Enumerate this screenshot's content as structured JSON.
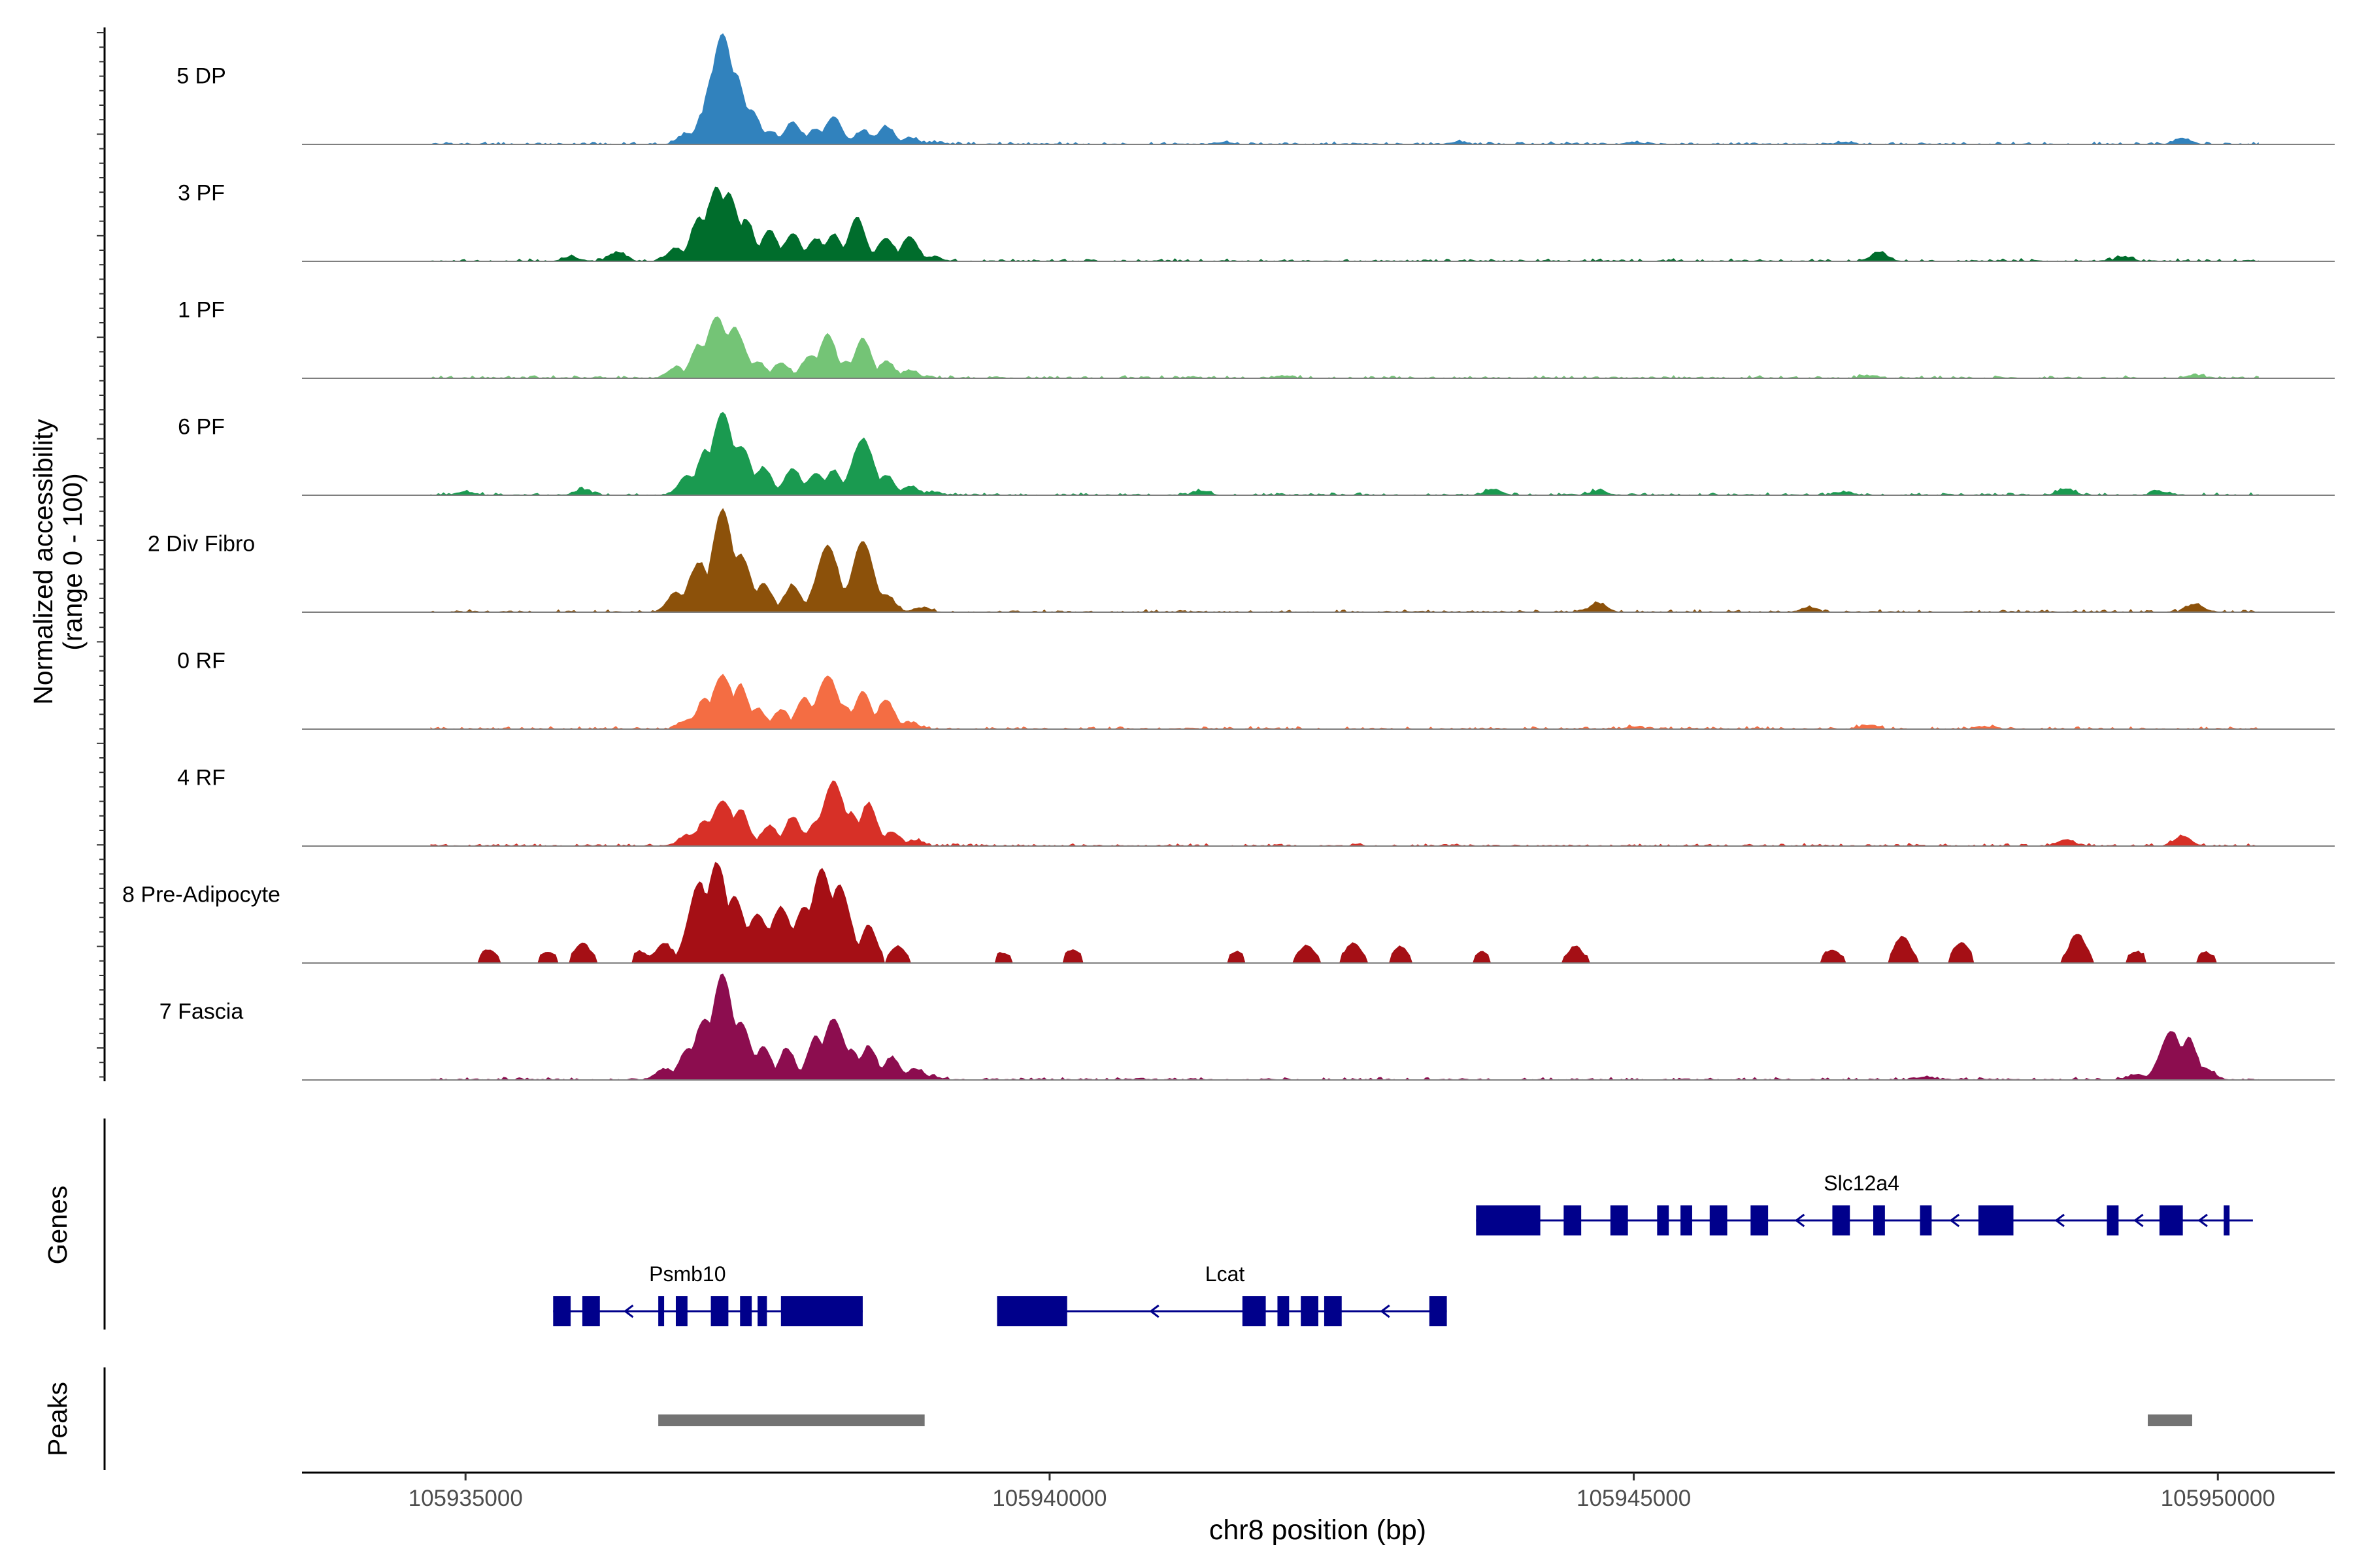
{
  "chart_data": {
    "type": "area",
    "title": "",
    "xlabel": "chr8 position (bp)",
    "ylabel_line1": "Normalized accessibility",
    "ylabel_line2": "(range 0 - 100)",
    "xlim": [
      105933600,
      105951000
    ],
    "x_ticks": [
      {
        "value": 105935000,
        "label": "105935000"
      },
      {
        "value": 105940000,
        "label": "105940000"
      },
      {
        "value": 105945000,
        "label": "105945000"
      },
      {
        "value": 105950000,
        "label": "105950000"
      }
    ],
    "panel_labels": {
      "genes": "Genes",
      "peaks": "Peaks"
    },
    "series": [
      {
        "name": "5 DP",
        "color": "#3182bd",
        "peaks": [
          [
            105936900,
            10
          ],
          [
            105937050,
            30
          ],
          [
            105937150,
            72
          ],
          [
            105937200,
            100
          ],
          [
            105937300,
            65
          ],
          [
            105937450,
            30
          ],
          [
            105937600,
            12
          ],
          [
            105937800,
            20
          ],
          [
            105938000,
            14
          ],
          [
            105938150,
            25
          ],
          [
            105938400,
            12
          ],
          [
            105938600,
            16
          ],
          [
            105938800,
            6
          ],
          [
            105939000,
            2
          ],
          [
            105941500,
            2
          ],
          [
            105943500,
            2
          ],
          [
            105945000,
            2
          ],
          [
            105946800,
            2
          ],
          [
            105949700,
            5
          ]
        ]
      },
      {
        "name": "3 PF",
        "color": "#006d2c",
        "peaks": [
          [
            105935900,
            4
          ],
          [
            105936300,
            8
          ],
          [
            105936800,
            12
          ],
          [
            105937000,
            40
          ],
          [
            105937150,
            66
          ],
          [
            105937250,
            60
          ],
          [
            105937400,
            38
          ],
          [
            105937600,
            28
          ],
          [
            105937800,
            25
          ],
          [
            105938000,
            20
          ],
          [
            105938150,
            24
          ],
          [
            105938350,
            40
          ],
          [
            105938600,
            21
          ],
          [
            105938800,
            22
          ],
          [
            105939000,
            4
          ],
          [
            105947100,
            8
          ],
          [
            105949200,
            4
          ]
        ]
      },
      {
        "name": "1 PF",
        "color": "#74c476",
        "peaks": [
          [
            105936800,
            10
          ],
          [
            105937000,
            30
          ],
          [
            105937150,
            55
          ],
          [
            105937300,
            45
          ],
          [
            105937500,
            15
          ],
          [
            105937700,
            14
          ],
          [
            105937950,
            20
          ],
          [
            105938100,
            40
          ],
          [
            105938250,
            15
          ],
          [
            105938400,
            36
          ],
          [
            105938600,
            15
          ],
          [
            105938800,
            7
          ],
          [
            105942000,
            2
          ],
          [
            105947000,
            2
          ],
          [
            105949800,
            3
          ]
        ]
      },
      {
        "name": "6 PF",
        "color": "#1a9a50",
        "peaks": [
          [
            105935000,
            3
          ],
          [
            105936000,
            5
          ],
          [
            105936900,
            18
          ],
          [
            105937050,
            40
          ],
          [
            105937200,
            75
          ],
          [
            105937350,
            44
          ],
          [
            105937550,
            25
          ],
          [
            105937800,
            24
          ],
          [
            105938000,
            20
          ],
          [
            105938150,
            22
          ],
          [
            105938400,
            50
          ],
          [
            105938600,
            18
          ],
          [
            105938800,
            8
          ],
          [
            105939000,
            3
          ],
          [
            105941300,
            4
          ],
          [
            105943800,
            5
          ],
          [
            105944700,
            4
          ],
          [
            105946800,
            3
          ],
          [
            105948700,
            6
          ],
          [
            105949500,
            3
          ]
        ]
      },
      {
        "name": "2 Div Fibro",
        "color": "#8c510a",
        "peaks": [
          [
            105936800,
            18
          ],
          [
            105937000,
            44
          ],
          [
            105937200,
            92
          ],
          [
            105937350,
            52
          ],
          [
            105937550,
            26
          ],
          [
            105937800,
            24
          ],
          [
            105938100,
            60
          ],
          [
            105938250,
            22
          ],
          [
            105938400,
            64
          ],
          [
            105938600,
            16
          ],
          [
            105938900,
            4
          ],
          [
            105944700,
            8
          ],
          [
            105946500,
            4
          ],
          [
            105949800,
            7
          ]
        ]
      },
      {
        "name": "0 RF",
        "color": "#f46d43",
        "peaks": [
          [
            105936900,
            8
          ],
          [
            105937050,
            28
          ],
          [
            105937200,
            48
          ],
          [
            105937350,
            40
          ],
          [
            105937500,
            18
          ],
          [
            105937700,
            17
          ],
          [
            105937900,
            28
          ],
          [
            105938100,
            48
          ],
          [
            105938250,
            20
          ],
          [
            105938400,
            34
          ],
          [
            105938600,
            26
          ],
          [
            105938800,
            6
          ],
          [
            105945000,
            2
          ],
          [
            105947000,
            3
          ],
          [
            105948000,
            2
          ]
        ]
      },
      {
        "name": "4 RF",
        "color": "#d73027",
        "peaks": [
          [
            105936900,
            10
          ],
          [
            105937050,
            22
          ],
          [
            105937200,
            41
          ],
          [
            105937350,
            33
          ],
          [
            105937600,
            18
          ],
          [
            105937800,
            26
          ],
          [
            105938000,
            22
          ],
          [
            105938150,
            58
          ],
          [
            105938300,
            30
          ],
          [
            105938450,
            38
          ],
          [
            105938650,
            13
          ],
          [
            105938850,
            5
          ],
          [
            105948700,
            6
          ],
          [
            105949700,
            9
          ]
        ]
      },
      {
        "name": "8 Pre-Adipocyte",
        "color": "#a50f15",
        "peaks": [
          [
            105935200,
            12
          ],
          [
            105935700,
            10
          ],
          [
            105936000,
            18
          ],
          [
            105936500,
            10
          ],
          [
            105936700,
            18
          ],
          [
            105937000,
            72
          ],
          [
            105937150,
            90
          ],
          [
            105937300,
            60
          ],
          [
            105937500,
            44
          ],
          [
            105937700,
            50
          ],
          [
            105937900,
            50
          ],
          [
            105938050,
            85
          ],
          [
            105938200,
            70
          ],
          [
            105938450,
            34
          ],
          [
            105938700,
            15
          ],
          [
            105939600,
            9
          ],
          [
            105940200,
            12
          ],
          [
            105941600,
            10
          ],
          [
            105942200,
            16
          ],
          [
            105942600,
            18
          ],
          [
            105943000,
            14
          ],
          [
            105943700,
            9
          ],
          [
            105944500,
            14
          ],
          [
            105946700,
            12
          ],
          [
            105947300,
            24
          ],
          [
            105947800,
            18
          ],
          [
            105948800,
            26
          ],
          [
            105949300,
            10
          ],
          [
            105949900,
            9
          ]
        ]
      },
      {
        "name": "7 Fascia",
        "color": "#8c0d4f",
        "peaks": [
          [
            105936700,
            10
          ],
          [
            105936900,
            28
          ],
          [
            105937050,
            55
          ],
          [
            105937200,
            95
          ],
          [
            105937350,
            52
          ],
          [
            105937550,
            30
          ],
          [
            105937750,
            28
          ],
          [
            105938000,
            40
          ],
          [
            105938150,
            55
          ],
          [
            105938300,
            28
          ],
          [
            105938450,
            30
          ],
          [
            105938650,
            20
          ],
          [
            105938850,
            10
          ],
          [
            105939000,
            3
          ],
          [
            105947500,
            3
          ],
          [
            105949300,
            5
          ],
          [
            105949600,
            44
          ],
          [
            105949750,
            38
          ],
          [
            105949900,
            10
          ]
        ]
      }
    ],
    "genes": [
      {
        "name": "Slc12a4",
        "strand": "-",
        "row": 1,
        "start": 105943650,
        "end": 105950300,
        "label_x": 105946950,
        "exons": [
          [
            105943650,
            105944200
          ],
          [
            105944400,
            105944550
          ],
          [
            105944800,
            105944950
          ],
          [
            105945200,
            105945300
          ],
          [
            105945400,
            105945500
          ],
          [
            105945650,
            105945800
          ],
          [
            105946000,
            105946150
          ],
          [
            105946700,
            105946850
          ],
          [
            105947050,
            105947150
          ],
          [
            105947450,
            105947550
          ],
          [
            105947950,
            105948250
          ],
          [
            105949050,
            105949150
          ],
          [
            105949500,
            105949700
          ],
          [
            105950050,
            105950100
          ]
        ]
      },
      {
        "name": "Psmb10",
        "strand": "-",
        "row": 2,
        "start": 105935750,
        "end": 105938400,
        "label_x": 105936900,
        "exons": [
          [
            105935750,
            105935900
          ],
          [
            105936000,
            105936150
          ],
          [
            105936650,
            105936700
          ],
          [
            105936800,
            105936900
          ],
          [
            105937100,
            105937250
          ],
          [
            105937350,
            105937450
          ],
          [
            105937500,
            105937580
          ],
          [
            105937700,
            105938400
          ]
        ]
      },
      {
        "name": "Lcat",
        "strand": "-",
        "row": 2,
        "start": 105939550,
        "end": 105943400,
        "label_x": 105941500,
        "exons": [
          [
            105939550,
            105940150
          ],
          [
            105941650,
            105941850
          ],
          [
            105941950,
            105942050
          ],
          [
            105942150,
            105942300
          ],
          [
            105942350,
            105942500
          ],
          [
            105943250,
            105943400
          ]
        ]
      }
    ],
    "peak_regions": [
      [
        105936650,
        105938930
      ],
      [
        105949400,
        105949780
      ]
    ]
  }
}
